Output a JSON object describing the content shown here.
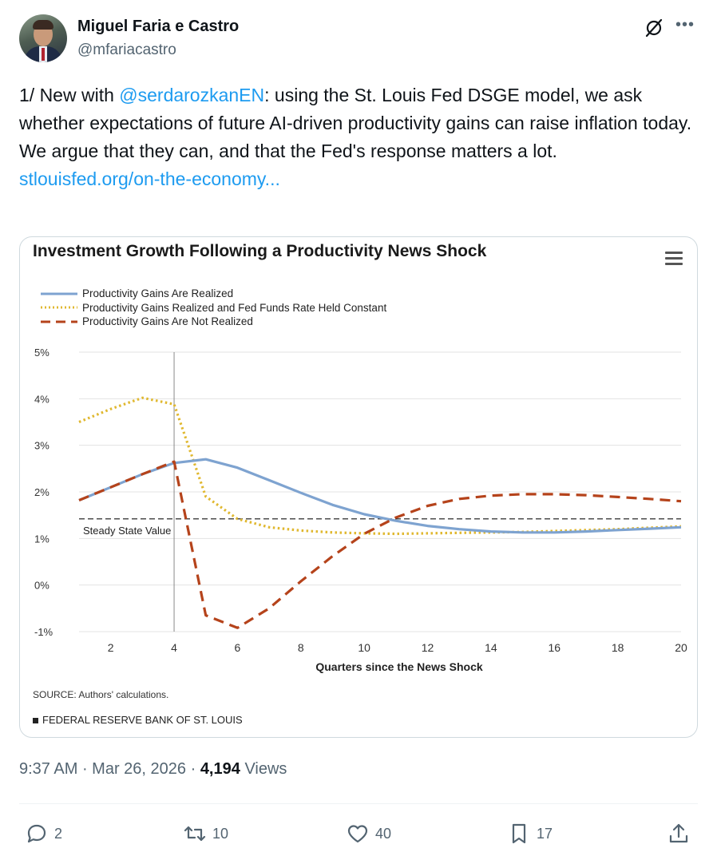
{
  "author": {
    "name": "Miguel Faria e Castro",
    "handle": "@mfariacastro"
  },
  "tweet": {
    "prefix": "1/ New with ",
    "mention": "@serdarozkanEN",
    "body": ": using the St. Louis Fed DSGE model, we ask whether expectations of future AI-driven productivity gains can raise inflation today. We argue that they can, and that the Fed's response matters a lot.",
    "link": "stlouisfed.org/on-the-economy..."
  },
  "icons": {
    "grok": "grok-icon",
    "more": "more-icon",
    "menu": "hamburger-menu-icon"
  },
  "chart_data": {
    "type": "line",
    "title": "Investment Growth Following a Productivity News Shock",
    "xlabel": "Quarters since the News Shock",
    "ylabel": "",
    "xlim": [
      1,
      20
    ],
    "ylim": [
      -1,
      5
    ],
    "xticks": [
      2,
      4,
      6,
      8,
      10,
      12,
      14,
      16,
      18,
      20
    ],
    "yticks": [
      -1,
      0,
      1,
      2,
      3,
      4,
      5
    ],
    "ytick_labels": [
      "-1%",
      "0%",
      "1%",
      "2%",
      "3%",
      "4%",
      "5%"
    ],
    "grid": true,
    "legend_position": "top-left",
    "series": [
      {
        "name": "Productivity Gains Are Realized",
        "style": "solid",
        "color": "#7ea3d0",
        "x": [
          1,
          2,
          3,
          4,
          5,
          6,
          7,
          8,
          9,
          10,
          11,
          12,
          13,
          14,
          15,
          16,
          17,
          18,
          19,
          20
        ],
        "y": [
          1.82,
          2.1,
          2.38,
          2.62,
          2.7,
          2.52,
          2.25,
          1.98,
          1.72,
          1.52,
          1.38,
          1.27,
          1.2,
          1.15,
          1.13,
          1.13,
          1.15,
          1.18,
          1.21,
          1.24
        ]
      },
      {
        "name": "Productivity Gains Realized and Fed Funds Rate Held Constant",
        "style": "dotted",
        "color": "#e0b830",
        "x": [
          1,
          2,
          3,
          4,
          5,
          6,
          7,
          8,
          9,
          10,
          11,
          12,
          13,
          14,
          15,
          16,
          17,
          18,
          19,
          20
        ],
        "y": [
          3.5,
          3.78,
          4.02,
          3.88,
          1.9,
          1.42,
          1.24,
          1.17,
          1.13,
          1.11,
          1.1,
          1.11,
          1.12,
          1.13,
          1.14,
          1.16,
          1.18,
          1.2,
          1.23,
          1.26
        ]
      },
      {
        "name": "Productivity Gains Are Not Realized",
        "style": "dashed",
        "color": "#b5431b",
        "x": [
          1,
          2,
          3,
          4,
          5,
          6,
          7,
          8,
          9,
          10,
          11,
          12,
          13,
          14,
          15,
          16,
          17,
          18,
          19,
          20
        ],
        "y": [
          1.82,
          2.1,
          2.38,
          2.65,
          -0.65,
          -0.92,
          -0.5,
          0.08,
          0.62,
          1.1,
          1.45,
          1.7,
          1.85,
          1.92,
          1.95,
          1.95,
          1.93,
          1.89,
          1.85,
          1.8
        ]
      }
    ],
    "reference_lines": [
      {
        "type": "horizontal",
        "y": 1.42,
        "label": "Steady State Value",
        "style": "dashed",
        "color": "#111111"
      },
      {
        "type": "vertical",
        "x": 4,
        "color": "#888888"
      }
    ],
    "source": "SOURCE: Authors' calculations.",
    "footer": "FEDERAL RESERVE BANK OF ST. LOUIS"
  },
  "meta": {
    "time": "9:37 AM",
    "date": "Mar 26, 2026",
    "views_count": "4,194",
    "views_label": "Views"
  },
  "actions": {
    "replies": "2",
    "reposts": "10",
    "likes": "40",
    "bookmarks": "17"
  }
}
